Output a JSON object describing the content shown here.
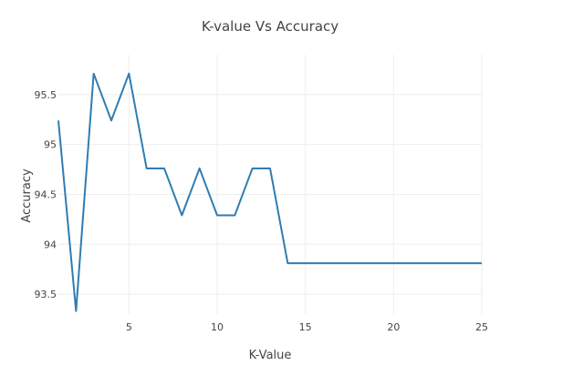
{
  "chart_data": {
    "type": "line",
    "title": "K-value Vs Accuracy",
    "xlabel": "K-Value",
    "ylabel": "Accuracy",
    "xlim": [
      1,
      25
    ],
    "ylim": [
      93.3,
      95.9
    ],
    "xticks": [
      5,
      10,
      15,
      20,
      25
    ],
    "yticks": [
      93.5,
      94,
      94.5,
      95,
      95.5
    ],
    "ytick_labels": [
      "93.5",
      "94",
      "94.5",
      "95",
      "95.5"
    ],
    "grid": true,
    "line_color": "#2e7db3",
    "x": [
      1,
      2,
      3,
      4,
      5,
      6,
      7,
      8,
      9,
      10,
      11,
      12,
      13,
      14,
      15,
      16,
      17,
      18,
      19,
      20,
      21,
      22,
      23,
      24,
      25
    ],
    "values": [
      95.24,
      93.33,
      95.71,
      95.24,
      95.71,
      94.76,
      94.76,
      94.29,
      94.76,
      94.29,
      94.29,
      94.76,
      94.76,
      93.81,
      93.81,
      93.81,
      93.81,
      93.81,
      93.81,
      93.81,
      93.81,
      93.81,
      93.81,
      93.81,
      93.81
    ]
  }
}
